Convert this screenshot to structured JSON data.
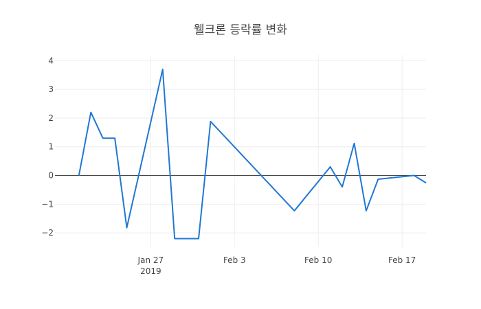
{
  "chart_data": {
    "type": "line",
    "title": "웰크론 등락률 변화",
    "xlabel": "",
    "ylabel": "",
    "x_range": [
      "2019-01-19",
      "2019-02-19"
    ],
    "ylim": [
      -2.5,
      4.2
    ],
    "grid": true,
    "zero_line": true,
    "legend": "none",
    "x_ticks": [
      {
        "date": "2019-01-27",
        "label": "Jan 27",
        "sublabel": "2019"
      },
      {
        "date": "2019-02-03",
        "label": "Feb 3",
        "sublabel": ""
      },
      {
        "date": "2019-02-10",
        "label": "Feb 10",
        "sublabel": ""
      },
      {
        "date": "2019-02-17",
        "label": "Feb 17",
        "sublabel": ""
      }
    ],
    "y_ticks": [
      {
        "value": 4,
        "label": "4"
      },
      {
        "value": 3,
        "label": "3"
      },
      {
        "value": 2,
        "label": "2"
      },
      {
        "value": 1,
        "label": "1"
      },
      {
        "value": 0,
        "label": "0"
      },
      {
        "value": -1,
        "label": "−1"
      },
      {
        "value": -2,
        "label": "−2"
      }
    ],
    "series": [
      {
        "color": "#1f77d4",
        "points": [
          {
            "x": "2019-01-21",
            "y": 0.0
          },
          {
            "x": "2019-01-22",
            "y": 2.2
          },
          {
            "x": "2019-01-23",
            "y": 1.3
          },
          {
            "x": "2019-01-24",
            "y": 1.3
          },
          {
            "x": "2019-01-25",
            "y": -1.82
          },
          {
            "x": "2019-01-28",
            "y": 3.7
          },
          {
            "x": "2019-01-29",
            "y": -2.2
          },
          {
            "x": "2019-01-31",
            "y": -2.2
          },
          {
            "x": "2019-02-01",
            "y": 1.88
          },
          {
            "x": "2019-02-08",
            "y": -1.23
          },
          {
            "x": "2019-02-11",
            "y": 0.3
          },
          {
            "x": "2019-02-12",
            "y": -0.4
          },
          {
            "x": "2019-02-13",
            "y": 1.12
          },
          {
            "x": "2019-02-14",
            "y": -1.23
          },
          {
            "x": "2019-02-15",
            "y": -0.13
          },
          {
            "x": "2019-02-18",
            "y": 0.0
          },
          {
            "x": "2019-02-19",
            "y": -0.26
          }
        ]
      }
    ]
  }
}
